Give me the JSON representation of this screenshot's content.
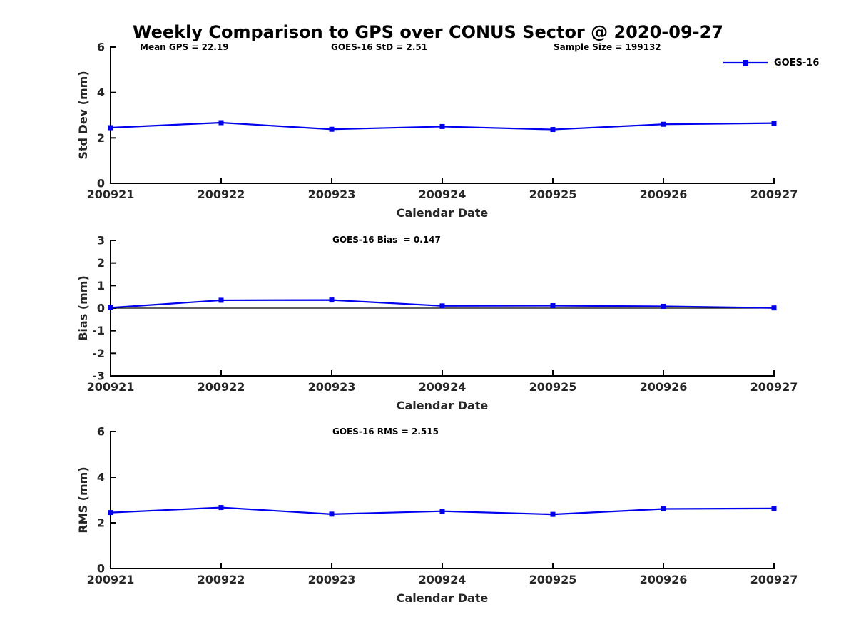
{
  "title": "Weekly Comparison to GPS over CONUS Sector @ 2020-09-27",
  "legend": {
    "label": "GOES-16"
  },
  "colors": {
    "line": "#0000EE",
    "axis": "#000000",
    "tick_text": "#262626",
    "background": "#FFFFFF"
  },
  "chart_data": [
    {
      "type": "line",
      "title": "",
      "xlabel": "Calendar Date",
      "ylabel": "Std Dev (mm)",
      "ylim": [
        0,
        6
      ],
      "yticks": [
        0,
        2,
        4,
        6
      ],
      "grid": false,
      "legend_position": "top-right",
      "zero_line": false,
      "categories": [
        "200921",
        "200922",
        "200923",
        "200924",
        "200925",
        "200926",
        "200927"
      ],
      "series": [
        {
          "name": "GOES-16",
          "values": [
            2.45,
            2.67,
            2.38,
            2.5,
            2.37,
            2.6,
            2.65
          ]
        }
      ],
      "annotations": [
        {
          "text": "Mean GPS = 22.19"
        },
        {
          "text": "GOES-16 StD = 2.51"
        },
        {
          "text": "Sample Size = 199132"
        }
      ]
    },
    {
      "type": "line",
      "title": "",
      "xlabel": "Calendar Date",
      "ylabel": "Bias (mm)",
      "ylim": [
        -3,
        3
      ],
      "yticks": [
        -3,
        -2,
        -1,
        0,
        1,
        2,
        3
      ],
      "grid": false,
      "zero_line": true,
      "categories": [
        "200921",
        "200922",
        "200923",
        "200924",
        "200925",
        "200926",
        "200927"
      ],
      "series": [
        {
          "name": "GOES-16",
          "values": [
            0.02,
            0.35,
            0.36,
            0.1,
            0.11,
            0.08,
            0.01
          ]
        }
      ],
      "annotations": [
        {
          "text": "GOES-16 Bias  = 0.147"
        }
      ]
    },
    {
      "type": "line",
      "title": "",
      "xlabel": "Calendar Date",
      "ylabel": "RMS (mm)",
      "ylim": [
        0,
        6
      ],
      "yticks": [
        0,
        2,
        4,
        6
      ],
      "grid": false,
      "zero_line": false,
      "categories": [
        "200921",
        "200922",
        "200923",
        "200924",
        "200925",
        "200926",
        "200927"
      ],
      "series": [
        {
          "name": "GOES-16",
          "values": [
            2.45,
            2.67,
            2.38,
            2.51,
            2.37,
            2.61,
            2.63
          ]
        }
      ],
      "annotations": [
        {
          "text": "GOES-16 RMS = 2.515"
        }
      ]
    }
  ]
}
